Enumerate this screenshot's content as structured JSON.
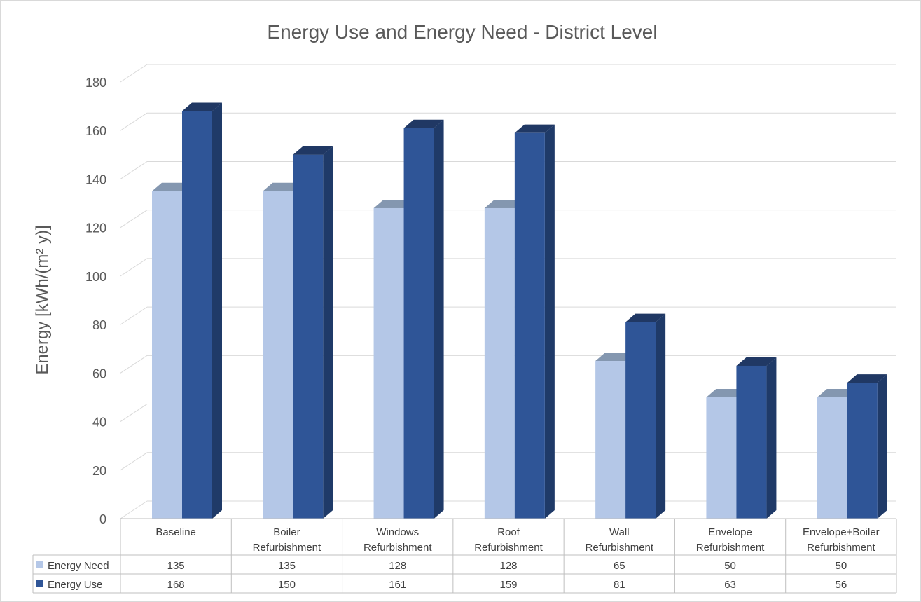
{
  "chart_data": {
    "type": "bar",
    "title": "Energy Use and Energy Need - District Level",
    "xlabel": "",
    "ylabel": "Energy [kWh/(m² y)]",
    "ylim": [
      0,
      180
    ],
    "yticks": [
      0,
      20,
      40,
      60,
      80,
      100,
      120,
      140,
      160,
      180
    ],
    "grid": true,
    "legend_position": "data-table-left",
    "categories": [
      [
        "Baseline"
      ],
      [
        "Boiler",
        "Refurbishment"
      ],
      [
        "Windows",
        "Refurbishment"
      ],
      [
        "Roof",
        "Refurbishment"
      ],
      [
        "Wall",
        "Refurbishment"
      ],
      [
        "Envelope",
        "Refurbishment"
      ],
      [
        "Envelope+Boiler",
        "Refurbishment"
      ]
    ],
    "series": [
      {
        "name": "Energy Need",
        "values": [
          135,
          135,
          128,
          128,
          65,
          50,
          50
        ],
        "color": "#b4c7e7",
        "top_color": "#8497b0",
        "side_color": "#8fa4c9"
      },
      {
        "name": "Energy Use",
        "values": [
          168,
          150,
          161,
          159,
          81,
          63,
          56
        ],
        "color": "#2f5597",
        "top_color": "#203864",
        "side_color": "#1f3a68"
      }
    ],
    "table_values": [
      [
        "135",
        "135",
        "128",
        "128",
        "65",
        "50",
        "50"
      ],
      [
        "168",
        "150",
        "161",
        "159",
        "81",
        "63",
        "56"
      ]
    ]
  }
}
